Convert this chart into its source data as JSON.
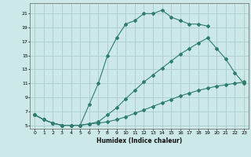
{
  "xlabel": "Humidex (Indice chaleur)",
  "bg_color": "#cce8e8",
  "grid_color": "#aacccc",
  "line_color": "#2e7d6e",
  "xlim": [
    -0.5,
    23.5
  ],
  "ylim": [
    4.5,
    22.5
  ],
  "xticks": [
    0,
    1,
    2,
    3,
    4,
    5,
    6,
    7,
    8,
    9,
    10,
    11,
    12,
    13,
    14,
    15,
    16,
    17,
    18,
    19,
    20,
    21,
    22,
    23
  ],
  "yticks": [
    5,
    7,
    9,
    11,
    13,
    15,
    17,
    19,
    21
  ],
  "line1_x": [
    0,
    1,
    2,
    3,
    4,
    5,
    6,
    7,
    8,
    9,
    10,
    11,
    12,
    13,
    14,
    15,
    16,
    17,
    18,
    19
  ],
  "line1_y": [
    6.5,
    5.8,
    5.3,
    5.0,
    5.0,
    5.0,
    8.0,
    11.0,
    15.0,
    17.5,
    19.5,
    20.0,
    21.0,
    21.0,
    21.5,
    20.5,
    20.0,
    19.5,
    19.5,
    19.2
  ],
  "line2_x": [
    0,
    1,
    2,
    3,
    4,
    5,
    6,
    7,
    8,
    9,
    10,
    11,
    12,
    13,
    14,
    15,
    16,
    17,
    18,
    19,
    20,
    21,
    22,
    23
  ],
  "line2_y": [
    6.5,
    5.8,
    5.3,
    5.0,
    5.0,
    5.0,
    5.2,
    5.5,
    6.5,
    7.5,
    8.8,
    10.0,
    11.2,
    12.2,
    13.2,
    14.2,
    15.2,
    16.0,
    16.8,
    17.5,
    16.0,
    14.5,
    12.5,
    11.0
  ],
  "line3_x": [
    0,
    1,
    2,
    3,
    4,
    5,
    6,
    7,
    8,
    9,
    10,
    11,
    12,
    13,
    14,
    15,
    16,
    17,
    18,
    19,
    20,
    21,
    22,
    23
  ],
  "line3_y": [
    6.5,
    5.8,
    5.3,
    5.0,
    5.0,
    5.0,
    5.2,
    5.3,
    5.5,
    5.8,
    6.2,
    6.7,
    7.2,
    7.7,
    8.2,
    8.7,
    9.2,
    9.6,
    10.0,
    10.3,
    10.6,
    10.8,
    11.0,
    11.2
  ]
}
